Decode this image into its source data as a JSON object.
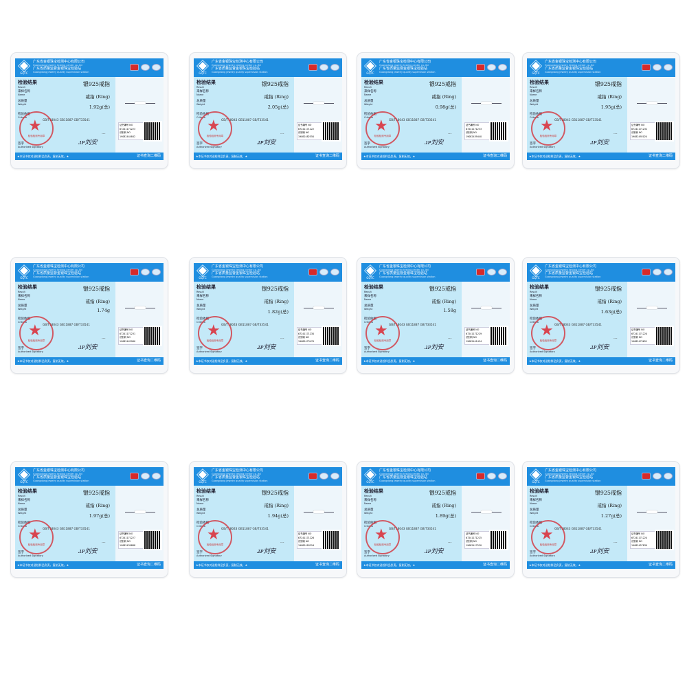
{
  "common": {
    "logo_text": "GQTC",
    "org_cn_1": "广东省金银珠宝检测中心有限公司",
    "org_en_1": "Guangdong jewelry testing center co.,ltd",
    "org_cn_2": "广东省质量监督金银珠宝检验站",
    "org_en_2": "Guangdong jewelry quality supervision station",
    "result_cn": "检验结果",
    "result_en": "Result",
    "product": "银925戒指",
    "name_cn": "来样名称",
    "name_en": "Name",
    "name_value": "戒指 (Ring)",
    "weight_cn": "总质量",
    "weight_en": "Weight",
    "criteria_cn": "检验依据",
    "criteria_en": "Criteria",
    "criteria_value": "GB/T18043 GB11887 GB/T33541",
    "remark_value": "---",
    "signatory_cn": "签字",
    "signatory_en": "Authorized Signatory",
    "stamp_text": "检验检测专用章",
    "cert_no_label": "证书编号 NO",
    "id_no_label": "识别码 NO",
    "footer_note": "★本证书仅对送检样品负责，复制无效。★",
    "footer_qr": "证书查询二维码"
  },
  "cards": [
    {
      "weight": "1.92g(总)",
      "cert_no": "67241171223",
      "id_no": "19082444842"
    },
    {
      "weight": "2.05g(总)",
      "cert_no": "67241171222",
      "id_no": "19082482550"
    },
    {
      "weight": "0.98g(总)",
      "cert_no": "67241171233",
      "id_no": "19082439440"
    },
    {
      "weight": "1.95g(总)",
      "cert_no": "67241171232",
      "id_no": "19082492024"
    },
    {
      "weight": "1.74g",
      "cert_no": "67241171231",
      "id_no": "19082442980"
    },
    {
      "weight": "1.82g(总)",
      "cert_no": "67241171230",
      "id_no": "19082473470"
    },
    {
      "weight": "1.58g",
      "cert_no": "67241171229",
      "id_no": "19082441454"
    },
    {
      "weight": "1.63g(总)",
      "cert_no": "67241171220",
      "id_no": "19082475651"
    },
    {
      "weight": "1.97g(总)",
      "cert_no": "67241171227",
      "id_no": "19082439888"
    },
    {
      "weight": "1.94g(总)",
      "cert_no": "67241171226",
      "id_no": "19082418216"
    },
    {
      "weight": "1.89g(总)",
      "cert_no": "67241171225",
      "id_no": "19082417530"
    },
    {
      "weight": "1.27g(总)",
      "cert_no": "67241171224",
      "id_no": "19082457839"
    }
  ],
  "colors": {
    "header_blue": "#1f8ee0",
    "panel_blue": "#c4e9f8",
    "stamp_red": "#d62a2a"
  }
}
